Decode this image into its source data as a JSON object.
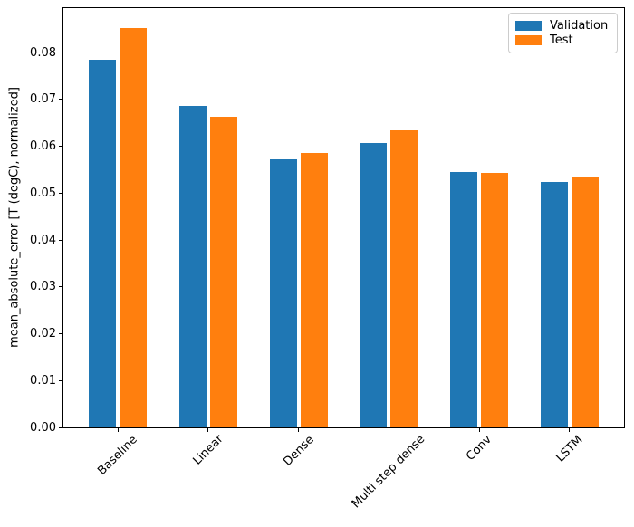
{
  "chart_data": {
    "type": "bar",
    "title": "",
    "xlabel": "",
    "ylabel": "mean_absolute_error [T (degC), normalized]",
    "categories": [
      "Baseline",
      "Linear",
      "Dense",
      "Multi step dense",
      "Conv",
      "LSTM"
    ],
    "series": [
      {
        "name": "Validation",
        "color": "#1f77b4",
        "offset": -0.17,
        "values": [
          0.0785,
          0.0687,
          0.0572,
          0.0607,
          0.0545,
          0.0524
        ]
      },
      {
        "name": "Test",
        "color": "#ff7f0e",
        "offset": 0.17,
        "values": [
          0.0852,
          0.0663,
          0.0585,
          0.0635,
          0.0543,
          0.0534
        ]
      }
    ],
    "bar_width": 0.3,
    "ylim": [
      0,
      0.0895
    ],
    "xlim": [
      -0.602,
      5.602
    ],
    "yticks": [
      0,
      0.01,
      0.02,
      0.03,
      0.04,
      0.05,
      0.06,
      0.07,
      0.08
    ],
    "ytick_labels": [
      "0.00",
      "0.01",
      "0.02",
      "0.03",
      "0.04",
      "0.05",
      "0.06",
      "0.07",
      "0.08"
    ],
    "xtick_rotation_deg": 45,
    "grid": false,
    "legend_position": "upper right",
    "axis_color": "#000000",
    "plot_background": "#ffffff"
  }
}
